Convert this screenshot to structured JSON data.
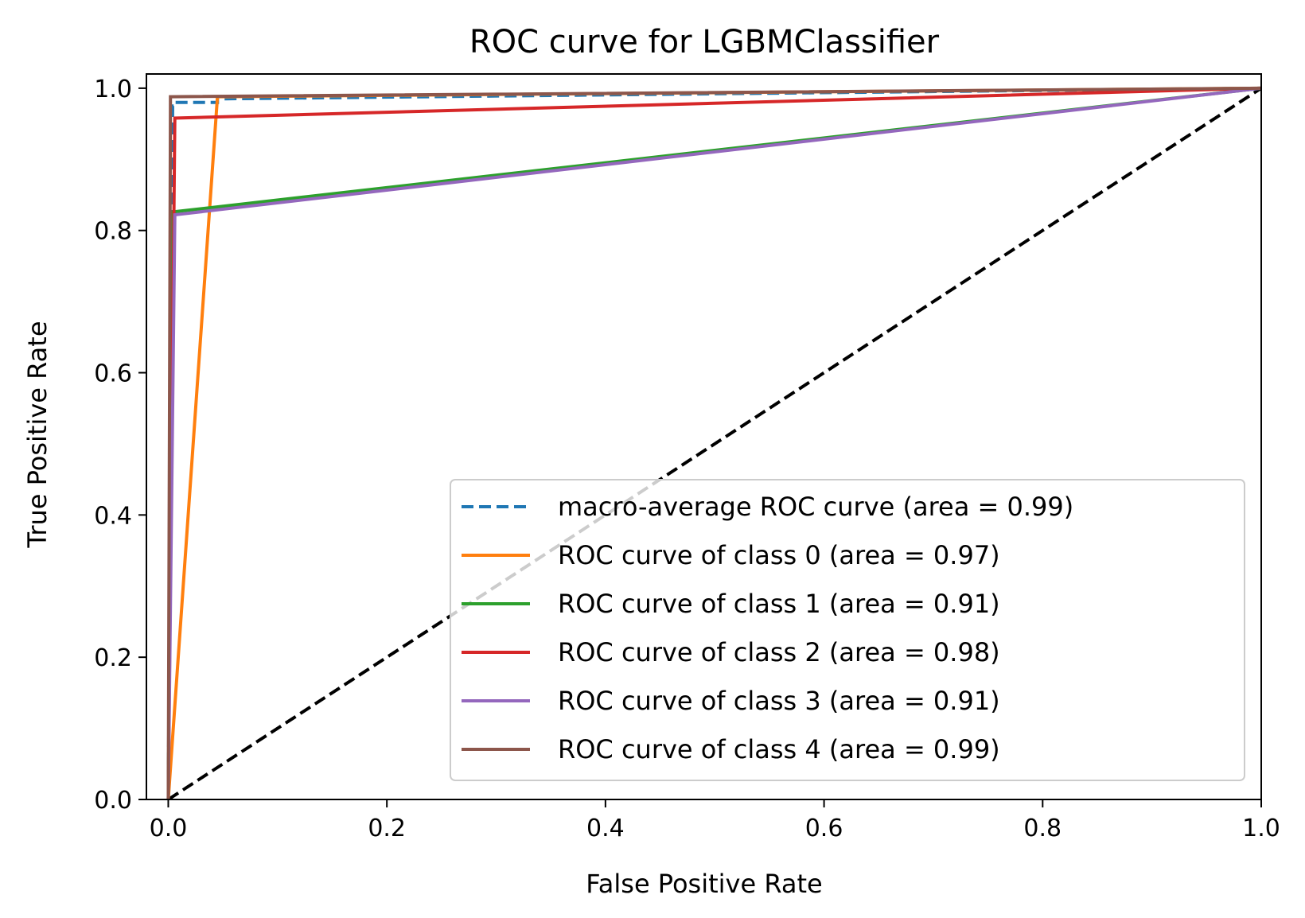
{
  "chart_data": {
    "type": "line",
    "title": "ROC curve for LGBMClassifier",
    "xlabel": "False Positive Rate",
    "ylabel": "True Positive Rate",
    "xlim": [
      -0.02,
      1.0
    ],
    "ylim": [
      0.0,
      1.02
    ],
    "grid": false,
    "legend_position": "lower-right",
    "x_ticks": [
      0.0,
      0.2,
      0.4,
      0.6,
      0.8,
      1.0
    ],
    "x_tick_labels": [
      "0.0",
      "0.2",
      "0.4",
      "0.6",
      "0.8",
      "1.0"
    ],
    "y_ticks": [
      0.0,
      0.2,
      0.4,
      0.6,
      0.8,
      1.0
    ],
    "y_tick_labels": [
      "0.0",
      "0.2",
      "0.4",
      "0.6",
      "0.8",
      "1.0"
    ],
    "reference_line": {
      "x": [
        0.0,
        1.0
      ],
      "y": [
        0.0,
        1.0
      ],
      "color": "#000000",
      "style": "dashed"
    },
    "series": [
      {
        "name": "macro-average ROC curve (area = 0.99)",
        "color": "#1f77b4",
        "style": "dashed",
        "x": [
          0.0,
          0.004,
          0.004,
          0.006,
          0.006,
          0.045,
          0.045,
          1.0
        ],
        "y": [
          0.0,
          0.97,
          0.975,
          0.975,
          0.98,
          0.98,
          0.985,
          1.0
        ]
      },
      {
        "name": "ROC curve of class 0 (area = 0.97)",
        "color": "#ff7f0e",
        "style": "solid",
        "x": [
          0.0,
          0.045,
          1.0
        ],
        "y": [
          0.0,
          0.988,
          1.0
        ]
      },
      {
        "name": "ROC curve of class 1 (area = 0.91)",
        "color": "#2ca02c",
        "style": "solid",
        "x": [
          0.0,
          0.004,
          1.0
        ],
        "y": [
          0.0,
          0.826,
          1.0
        ]
      },
      {
        "name": "ROC curve of class 2 (area = 0.98)",
        "color": "#d62728",
        "style": "solid",
        "x": [
          0.0,
          0.006,
          1.0
        ],
        "y": [
          0.0,
          0.958,
          1.0
        ]
      },
      {
        "name": "ROC curve of class 3 (area = 0.91)",
        "color": "#9467bd",
        "style": "solid",
        "x": [
          0.0,
          0.006,
          1.0
        ],
        "y": [
          0.0,
          0.822,
          1.0
        ]
      },
      {
        "name": "ROC curve of class 4 (area = 0.99)",
        "color": "#8c564b",
        "style": "solid",
        "x": [
          0.0,
          0.002,
          1.0
        ],
        "y": [
          0.0,
          0.988,
          1.0
        ]
      }
    ]
  }
}
